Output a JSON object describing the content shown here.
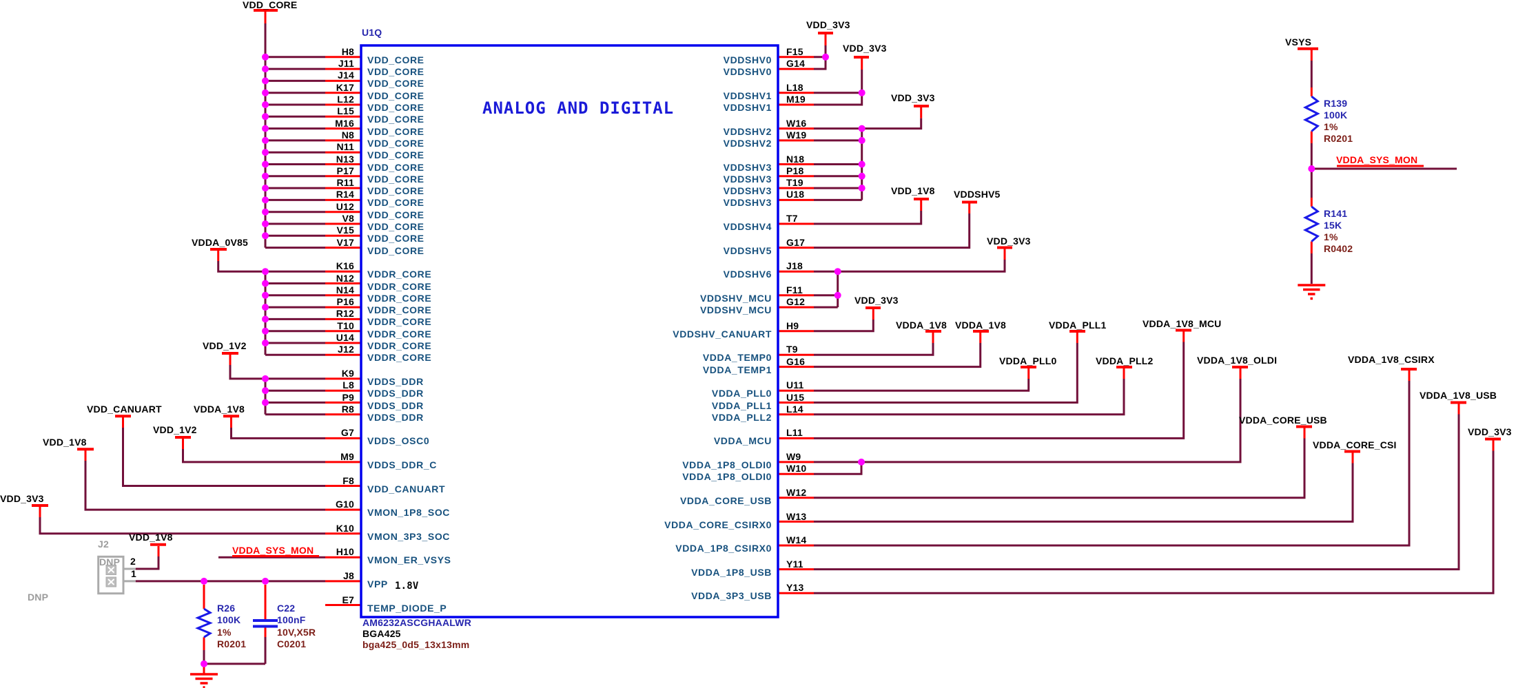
{
  "chip": {
    "refdes": "U1Q",
    "title": "ANALOG AND DIGITAL",
    "part_number": "AM6232ASCGHAALWR",
    "package": "BGA425",
    "footprint": "bga425_0d5_13x13mm",
    "vpp_voltage": "1.8V"
  },
  "left_pins": {
    "core": [
      {
        "pin": "H8",
        "name": "VDD_CORE"
      },
      {
        "pin": "J11",
        "name": "VDD_CORE"
      },
      {
        "pin": "J14",
        "name": "VDD_CORE"
      },
      {
        "pin": "K17",
        "name": "VDD_CORE"
      },
      {
        "pin": "L12",
        "name": "VDD_CORE"
      },
      {
        "pin": "L15",
        "name": "VDD_CORE"
      },
      {
        "pin": "M16",
        "name": "VDD_CORE"
      },
      {
        "pin": "N8",
        "name": "VDD_CORE"
      },
      {
        "pin": "N11",
        "name": "VDD_CORE"
      },
      {
        "pin": "N13",
        "name": "VDD_CORE"
      },
      {
        "pin": "P17",
        "name": "VDD_CORE"
      },
      {
        "pin": "R11",
        "name": "VDD_CORE"
      },
      {
        "pin": "R14",
        "name": "VDD_CORE"
      },
      {
        "pin": "U12",
        "name": "VDD_CORE"
      },
      {
        "pin": "V8",
        "name": "VDD_CORE"
      },
      {
        "pin": "V15",
        "name": "VDD_CORE"
      },
      {
        "pin": "V17",
        "name": "VDD_CORE"
      }
    ],
    "vddr": [
      {
        "pin": "K16",
        "name": "VDDR_CORE"
      },
      {
        "pin": "N12",
        "name": "VDDR_CORE"
      },
      {
        "pin": "N14",
        "name": "VDDR_CORE"
      },
      {
        "pin": "P16",
        "name": "VDDR_CORE"
      },
      {
        "pin": "R12",
        "name": "VDDR_CORE"
      },
      {
        "pin": "T10",
        "name": "VDDR_CORE"
      },
      {
        "pin": "U14",
        "name": "VDDR_CORE"
      },
      {
        "pin": "J12",
        "name": "VDDR_CORE"
      }
    ],
    "vdds": [
      {
        "pin": "K9",
        "name": "VDDS_DDR"
      },
      {
        "pin": "L8",
        "name": "VDDS_DDR"
      },
      {
        "pin": "P9",
        "name": "VDDS_DDR"
      },
      {
        "pin": "R8",
        "name": "VDDS_DDR"
      }
    ],
    "misc": [
      {
        "pin": "G7",
        "name": "VDDS_OSC0",
        "row": 32
      },
      {
        "pin": "M9",
        "name": "VDDS_DDR_C",
        "row": 34
      },
      {
        "pin": "F8",
        "name": "VDD_CANUART",
        "row": 36
      },
      {
        "pin": "G10",
        "name": "VMON_1P8_SOC",
        "row": 38
      },
      {
        "pin": "K10",
        "name": "VMON_3P3_SOC",
        "row": 40
      },
      {
        "pin": "H10",
        "name": "VMON_ER_VSYS",
        "row": 42
      },
      {
        "pin": "J8",
        "name": "VPP",
        "row": 44
      },
      {
        "pin": "E7",
        "name": "TEMP_DIODE_P",
        "row": 46
      }
    ]
  },
  "right_pins": [
    {
      "pin": "F15",
      "name": "VDDSHV0",
      "row": 0
    },
    {
      "pin": "G14",
      "name": "VDDSHV0",
      "row": 1
    },
    {
      "pin": "L18",
      "name": "VDDSHV1",
      "row": 3
    },
    {
      "pin": "M19",
      "name": "VDDSHV1",
      "row": 4
    },
    {
      "pin": "W16",
      "name": "VDDSHV2",
      "row": 6
    },
    {
      "pin": "W19",
      "name": "VDDSHV2",
      "row": 7
    },
    {
      "pin": "N18",
      "name": "VDDSHV3",
      "row": 9
    },
    {
      "pin": "P18",
      "name": "VDDSHV3",
      "row": 10
    },
    {
      "pin": "T19",
      "name": "VDDSHV3",
      "row": 11
    },
    {
      "pin": "U18",
      "name": "VDDSHV3",
      "row": 12
    },
    {
      "pin": "T7",
      "name": "VDDSHV4",
      "row": 14
    },
    {
      "pin": "G17",
      "name": "VDDSHV5",
      "row": 16
    },
    {
      "pin": "J18",
      "name": "VDDSHV6",
      "row": 18
    },
    {
      "pin": "F11",
      "name": "VDDSHV_MCU",
      "row": 20
    },
    {
      "pin": "G12",
      "name": "VDDSHV_MCU",
      "row": 21
    },
    {
      "pin": "H9",
      "name": "VDDSHV_CANUART",
      "row": 23
    },
    {
      "pin": "T9",
      "name": "VDDA_TEMP0",
      "row": 25
    },
    {
      "pin": "G16",
      "name": "VDDA_TEMP1",
      "row": 26
    },
    {
      "pin": "U11",
      "name": "VDDA_PLL0",
      "row": 28
    },
    {
      "pin": "U15",
      "name": "VDDA_PLL1",
      "row": 29
    },
    {
      "pin": "L14",
      "name": "VDDA_PLL2",
      "row": 30
    },
    {
      "pin": "L11",
      "name": "VDDA_MCU",
      "row": 32
    },
    {
      "pin": "W9",
      "name": "VDDA_1P8_OLDI0",
      "row": 34
    },
    {
      "pin": "W10",
      "name": "VDDA_1P8_OLDI0",
      "row": 35
    },
    {
      "pin": "W12",
      "name": "VDDA_CORE_USB",
      "row": 37
    },
    {
      "pin": "W13",
      "name": "VDDA_CORE_CSIRX0",
      "row": 39
    },
    {
      "pin": "W14",
      "name": "VDDA_1P8_CSIRX0",
      "row": 41
    },
    {
      "pin": "Y11",
      "name": "VDDA_1P8_USB",
      "row": 43
    },
    {
      "pin": "Y13",
      "name": "VDDA_3P3_USB",
      "row": 45
    }
  ],
  "power_flags": {
    "vdd_core": "VDD_CORE",
    "vdda_0v85": "VDDA_0V85",
    "vdd_1v2_a": "VDD_1V2",
    "vdd_canuart": "VDD_CANUART",
    "vdda_1v8_left": "VDDA_1V8",
    "vdd_1v2_b": "VDD_1V2",
    "vdd_1v8_left": "VDD_1V8",
    "vdd_3v3_left": "VDD_3V3",
    "vdd_1v8_j2": "VDD_1V8",
    "vsys": "VSYS",
    "vdd_3v3_f15": "VDD_3V3",
    "vdd_3v3_l18": "VDD_3V3",
    "vdd_3v3_w16": "VDD_3V3",
    "vdd_1v8_t7": "VDD_1V8",
    "vddshv5": "VDDSHV5",
    "vdd_3v3_j18": "VDD_3V3",
    "vdd_3v3_h9": "VDD_3V3",
    "vdda_1v8_t9": "VDDA_1V8",
    "vdda_1v8_g16": "VDDA_1V8",
    "vdda_pll1": "VDDA_PLL1",
    "vdda_1v8_mcu": "VDDA_1V8_MCU",
    "vdda_pll0": "VDDA_PLL0",
    "vdda_pll2": "VDDA_PLL2",
    "vdda_1v8_oldi": "VDDA_1V8_OLDI",
    "vdda_1v8_csirx": "VDDA_1V8_CSIRX",
    "vdda_1v8_usb": "VDDA_1V8_USB",
    "vdda_core_usb": "VDDA_CORE_USB",
    "vdda_core_csi": "VDDA_CORE_CSI",
    "vdd_3v3_y13": "VDD_3V3"
  },
  "net_labels": {
    "vdda_sys_mon_left": "VDDA_SYS_MON",
    "vdda_sys_mon_right": "VDDA_SYS_MON"
  },
  "components": {
    "r26": {
      "ref": "R26",
      "value": "100K",
      "tol": "1%",
      "footprint": "R0201"
    },
    "c22": {
      "ref": "C22",
      "value": "100nF",
      "rating": "10V,X5R",
      "footprint": "C0201"
    },
    "r139": {
      "ref": "R139",
      "value": "100K",
      "tol": "1%",
      "footprint": "R0201"
    },
    "r141": {
      "ref": "R141",
      "value": "15K",
      "tol": "1%",
      "footprint": "R0402"
    },
    "j2": {
      "ref": "J2",
      "dnp_badge": "DNP",
      "pin2": "2",
      "pin1": "1",
      "dnp_note": "DNP"
    }
  }
}
